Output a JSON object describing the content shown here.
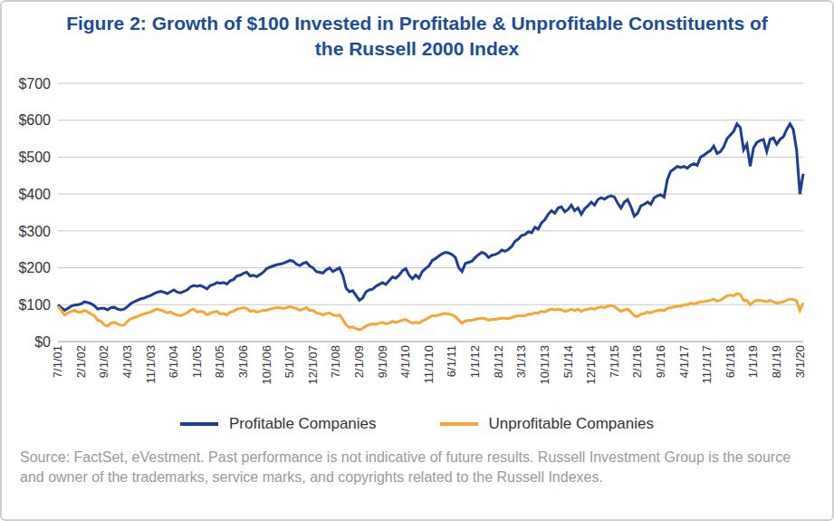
{
  "chart_data": {
    "type": "line",
    "title": "Figure 2: Growth of $100 Invested in Profitable & Unprofitable Constituents of the Russell 2000 Index",
    "note": "Source: FactSet, eVestment. Past performance is not indicative of future results. Russell Investment Group is the source and owner of the trademarks, service marks, and copyrights related to the Russell Indexes.",
    "categories": [
      "7/1/01",
      null,
      null,
      null,
      null,
      null,
      null,
      "2/1/02",
      null,
      null,
      null,
      null,
      null,
      null,
      "9/1/02",
      null,
      null,
      null,
      null,
      null,
      null,
      "4/1/03",
      null,
      null,
      null,
      null,
      null,
      null,
      "11/1/03",
      null,
      null,
      null,
      null,
      null,
      null,
      "6/1/04",
      null,
      null,
      null,
      null,
      null,
      null,
      "1/1/05",
      null,
      null,
      null,
      null,
      null,
      null,
      "8/1/05",
      null,
      null,
      null,
      null,
      null,
      null,
      "3/1/06",
      null,
      null,
      null,
      null,
      null,
      null,
      "10/1/06",
      null,
      null,
      null,
      null,
      null,
      null,
      "5/1/07",
      null,
      null,
      null,
      null,
      null,
      null,
      "12/1/07",
      null,
      null,
      null,
      null,
      null,
      null,
      "7/1/08",
      null,
      null,
      null,
      null,
      null,
      null,
      "2/1/09",
      null,
      null,
      null,
      null,
      null,
      null,
      "9/1/09",
      null,
      null,
      null,
      null,
      null,
      null,
      "4/1/10",
      null,
      null,
      null,
      null,
      null,
      null,
      "11/1/10",
      null,
      null,
      null,
      null,
      null,
      null,
      "6/1/11",
      null,
      null,
      null,
      null,
      null,
      null,
      "1/1/12",
      null,
      null,
      null,
      null,
      null,
      null,
      "8/1/12",
      null,
      null,
      null,
      null,
      null,
      null,
      "3/1/13",
      null,
      null,
      null,
      null,
      null,
      null,
      "10/1/13",
      null,
      null,
      null,
      null,
      null,
      null,
      "5/1/14",
      null,
      null,
      null,
      null,
      null,
      null,
      "12/1/14",
      null,
      null,
      null,
      null,
      null,
      null,
      "7/1/15",
      null,
      null,
      null,
      null,
      null,
      null,
      "2/1/16",
      null,
      null,
      null,
      null,
      null,
      null,
      "9/1/16",
      null,
      null,
      null,
      null,
      null,
      null,
      "4/1/17",
      null,
      null,
      null,
      null,
      null,
      null,
      "11/1/17",
      null,
      null,
      null,
      null,
      null,
      null,
      "6/1/18",
      null,
      null,
      null,
      null,
      null,
      null,
      "1/1/19",
      null,
      null,
      null,
      null,
      null,
      null,
      "8/1/19",
      null,
      null,
      null,
      null,
      null,
      null,
      "3/1/20",
      null
    ],
    "series": [
      {
        "name": "Profitable Companies",
        "color": "#1d3c96",
        "values": [
          100,
          92,
          85,
          90,
          96,
          99,
          100,
          102,
          108,
          106,
          103,
          97,
          88,
          90,
          90,
          86,
          92,
          93,
          88,
          86,
          88,
          95,
          103,
          108,
          112,
          116,
          118,
          122,
          125,
          130,
          134,
          136,
          134,
          130,
          135,
          140,
          134,
          132,
          136,
          140,
          148,
          152,
          150,
          152,
          148,
          143,
          152,
          155,
          160,
          158,
          160,
          156,
          165,
          168,
          178,
          180,
          185,
          188,
          178,
          180,
          176,
          182,
          188,
          198,
          202,
          205,
          208,
          210,
          212,
          216,
          220,
          218,
          210,
          206,
          212,
          215,
          205,
          200,
          190,
          188,
          186,
          195,
          200,
          190,
          195,
          200,
          180,
          145,
          135,
          138,
          125,
          112,
          118,
          135,
          140,
          142,
          150,
          155,
          160,
          155,
          165,
          175,
          172,
          180,
          192,
          198,
          180,
          170,
          180,
          172,
          190,
          198,
          205,
          220,
          225,
          232,
          238,
          242,
          240,
          236,
          228,
          200,
          190,
          212,
          215,
          218,
          228,
          236,
          242,
          238,
          228,
          234,
          236,
          240,
          248,
          245,
          250,
          258,
          272,
          278,
          288,
          290,
          298,
          295,
          310,
          305,
          322,
          330,
          345,
          355,
          348,
          362,
          365,
          352,
          358,
          370,
          355,
          362,
          345,
          360,
          368,
          378,
          370,
          385,
          390,
          386,
          392,
          395,
          392,
          375,
          362,
          378,
          385,
          365,
          340,
          348,
          368,
          372,
          378,
          372,
          390,
          395,
          398,
          392,
          440,
          462,
          468,
          475,
          472,
          475,
          470,
          478,
          482,
          478,
          500,
          505,
          512,
          518,
          530,
          510,
          515,
          528,
          550,
          560,
          570,
          590,
          580,
          520,
          535,
          475,
          525,
          540,
          545,
          548,
          515,
          548,
          552,
          535,
          548,
          555,
          575,
          590,
          575,
          520,
          400,
          455
        ]
      },
      {
        "name": "Unprofitable Companies",
        "color": "#f5a733",
        "values": [
          95,
          85,
          72,
          78,
          82,
          85,
          80,
          80,
          85,
          80,
          75,
          70,
          58,
          55,
          45,
          42,
          50,
          52,
          48,
          44,
          45,
          55,
          62,
          65,
          68,
          72,
          75,
          78,
          80,
          85,
          88,
          85,
          82,
          78,
          80,
          75,
          72,
          70,
          74,
          78,
          85,
          88,
          80,
          82,
          80,
          72,
          78,
          80,
          82,
          75,
          76,
          72,
          80,
          82,
          88,
          90,
          92,
          90,
          82,
          84,
          80,
          82,
          85,
          85,
          88,
          90,
          92,
          92,
          90,
          92,
          95,
          92,
          90,
          85,
          88,
          92,
          85,
          85,
          78,
          76,
          72,
          76,
          78,
          72,
          70,
          72,
          60,
          45,
          38,
          40,
          35,
          32,
          36,
          42,
          46,
          48,
          47,
          50,
          52,
          48,
          50,
          55,
          52,
          55,
          58,
          60,
          54,
          50,
          52,
          50,
          56,
          60,
          65,
          70,
          70,
          72,
          75,
          76,
          75,
          72,
          68,
          58,
          50,
          56,
          58,
          58,
          60,
          62,
          64,
          62,
          58,
          60,
          60,
          62,
          64,
          63,
          62,
          65,
          68,
          70,
          70,
          70,
          74,
          74,
          78,
          78,
          82,
          80,
          85,
          88,
          86,
          88,
          86,
          82,
          84,
          88,
          84,
          88,
          82,
          86,
          88,
          90,
          88,
          92,
          94,
          92,
          96,
          98,
          95,
          88,
          82,
          86,
          88,
          80,
          70,
          68,
          74,
          76,
          80,
          78,
          82,
          84,
          86,
          84,
          90,
          92,
          94,
          96,
          96,
          100,
          100,
          104,
          102,
          105,
          108,
          108,
          110,
          112,
          115,
          110,
          112,
          118,
          124,
          126,
          124,
          130,
          128,
          112,
          112,
          100,
          108,
          112,
          112,
          110,
          108,
          112,
          108,
          104,
          106,
          108,
          112,
          115,
          114,
          110,
          85,
          105
        ]
      }
    ],
    "ylim": [
      0,
      700
    ],
    "yticks": [
      {
        "value": 0,
        "label": "$0"
      },
      {
        "value": 100,
        "label": "$100"
      },
      {
        "value": 200,
        "label": "$200"
      },
      {
        "value": 300,
        "label": "$300"
      },
      {
        "value": 400,
        "label": "$400"
      },
      {
        "value": 500,
        "label": "$500"
      },
      {
        "value": 600,
        "label": "$600"
      },
      {
        "value": 700,
        "label": "$700"
      }
    ],
    "grid": true,
    "legend": "bottom"
  }
}
